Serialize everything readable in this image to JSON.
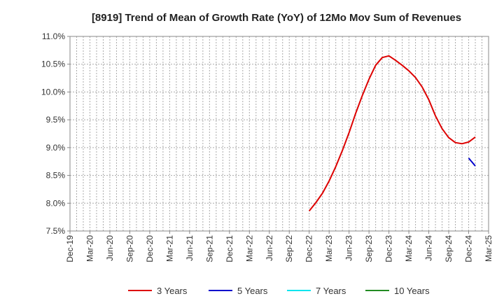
{
  "chart_data": {
    "type": "line",
    "title": "[8919]  Trend of Mean of Growth Rate (YoY) of 12Mo Mov Sum of Revenues",
    "xlabel": "",
    "ylabel": "",
    "x_ticks": [
      "Dec-19",
      "Mar-20",
      "Jun-20",
      "Sep-20",
      "Dec-20",
      "Mar-21",
      "Jun-21",
      "Sep-21",
      "Dec-21",
      "Mar-22",
      "Jun-22",
      "Sep-22",
      "Dec-22",
      "Mar-23",
      "Jun-23",
      "Sep-23",
      "Dec-23",
      "Mar-24",
      "Jun-24",
      "Sep-24",
      "Dec-24",
      "Mar-25"
    ],
    "y_ticks": [
      "7.5%",
      "8.0%",
      "8.5%",
      "9.0%",
      "9.5%",
      "10.0%",
      "10.5%",
      "11.0%"
    ],
    "y_tick_values": [
      7.5,
      8.0,
      8.5,
      9.0,
      9.5,
      10.0,
      10.5,
      11.0
    ],
    "ylim": [
      7.5,
      11.0
    ],
    "x_months_range": [
      0,
      63
    ],
    "grid": true,
    "legend_position": "bottom",
    "series": [
      {
        "name": "3 Years",
        "color": "#dd0000",
        "points": [
          {
            "m": 36,
            "v": 7.86
          },
          {
            "m": 37,
            "v": 8.01
          },
          {
            "m": 38,
            "v": 8.18
          },
          {
            "m": 39,
            "v": 8.4
          },
          {
            "m": 40,
            "v": 8.66
          },
          {
            "m": 41,
            "v": 8.95
          },
          {
            "m": 42,
            "v": 9.27
          },
          {
            "m": 43,
            "v": 9.62
          },
          {
            "m": 44,
            "v": 9.94
          },
          {
            "m": 45,
            "v": 10.23
          },
          {
            "m": 46,
            "v": 10.48
          },
          {
            "m": 47,
            "v": 10.62
          },
          {
            "m": 48,
            "v": 10.65
          },
          {
            "m": 49,
            "v": 10.57
          },
          {
            "m": 50,
            "v": 10.48
          },
          {
            "m": 51,
            "v": 10.38
          },
          {
            "m": 52,
            "v": 10.26
          },
          {
            "m": 53,
            "v": 10.09
          },
          {
            "m": 54,
            "v": 9.86
          },
          {
            "m": 55,
            "v": 9.57
          },
          {
            "m": 56,
            "v": 9.34
          },
          {
            "m": 57,
            "v": 9.18
          },
          {
            "m": 58,
            "v": 9.09
          },
          {
            "m": 59,
            "v": 9.07
          },
          {
            "m": 60,
            "v": 9.1
          },
          {
            "m": 61,
            "v": 9.19
          }
        ]
      },
      {
        "name": "5 Years",
        "color": "#0000cc",
        "points": [
          {
            "m": 60,
            "v": 8.81
          },
          {
            "m": 61,
            "v": 8.67
          }
        ]
      },
      {
        "name": "7 Years",
        "color": "#00e5ee",
        "points": []
      },
      {
        "name": "10 Years",
        "color": "#228b22",
        "points": []
      }
    ]
  }
}
